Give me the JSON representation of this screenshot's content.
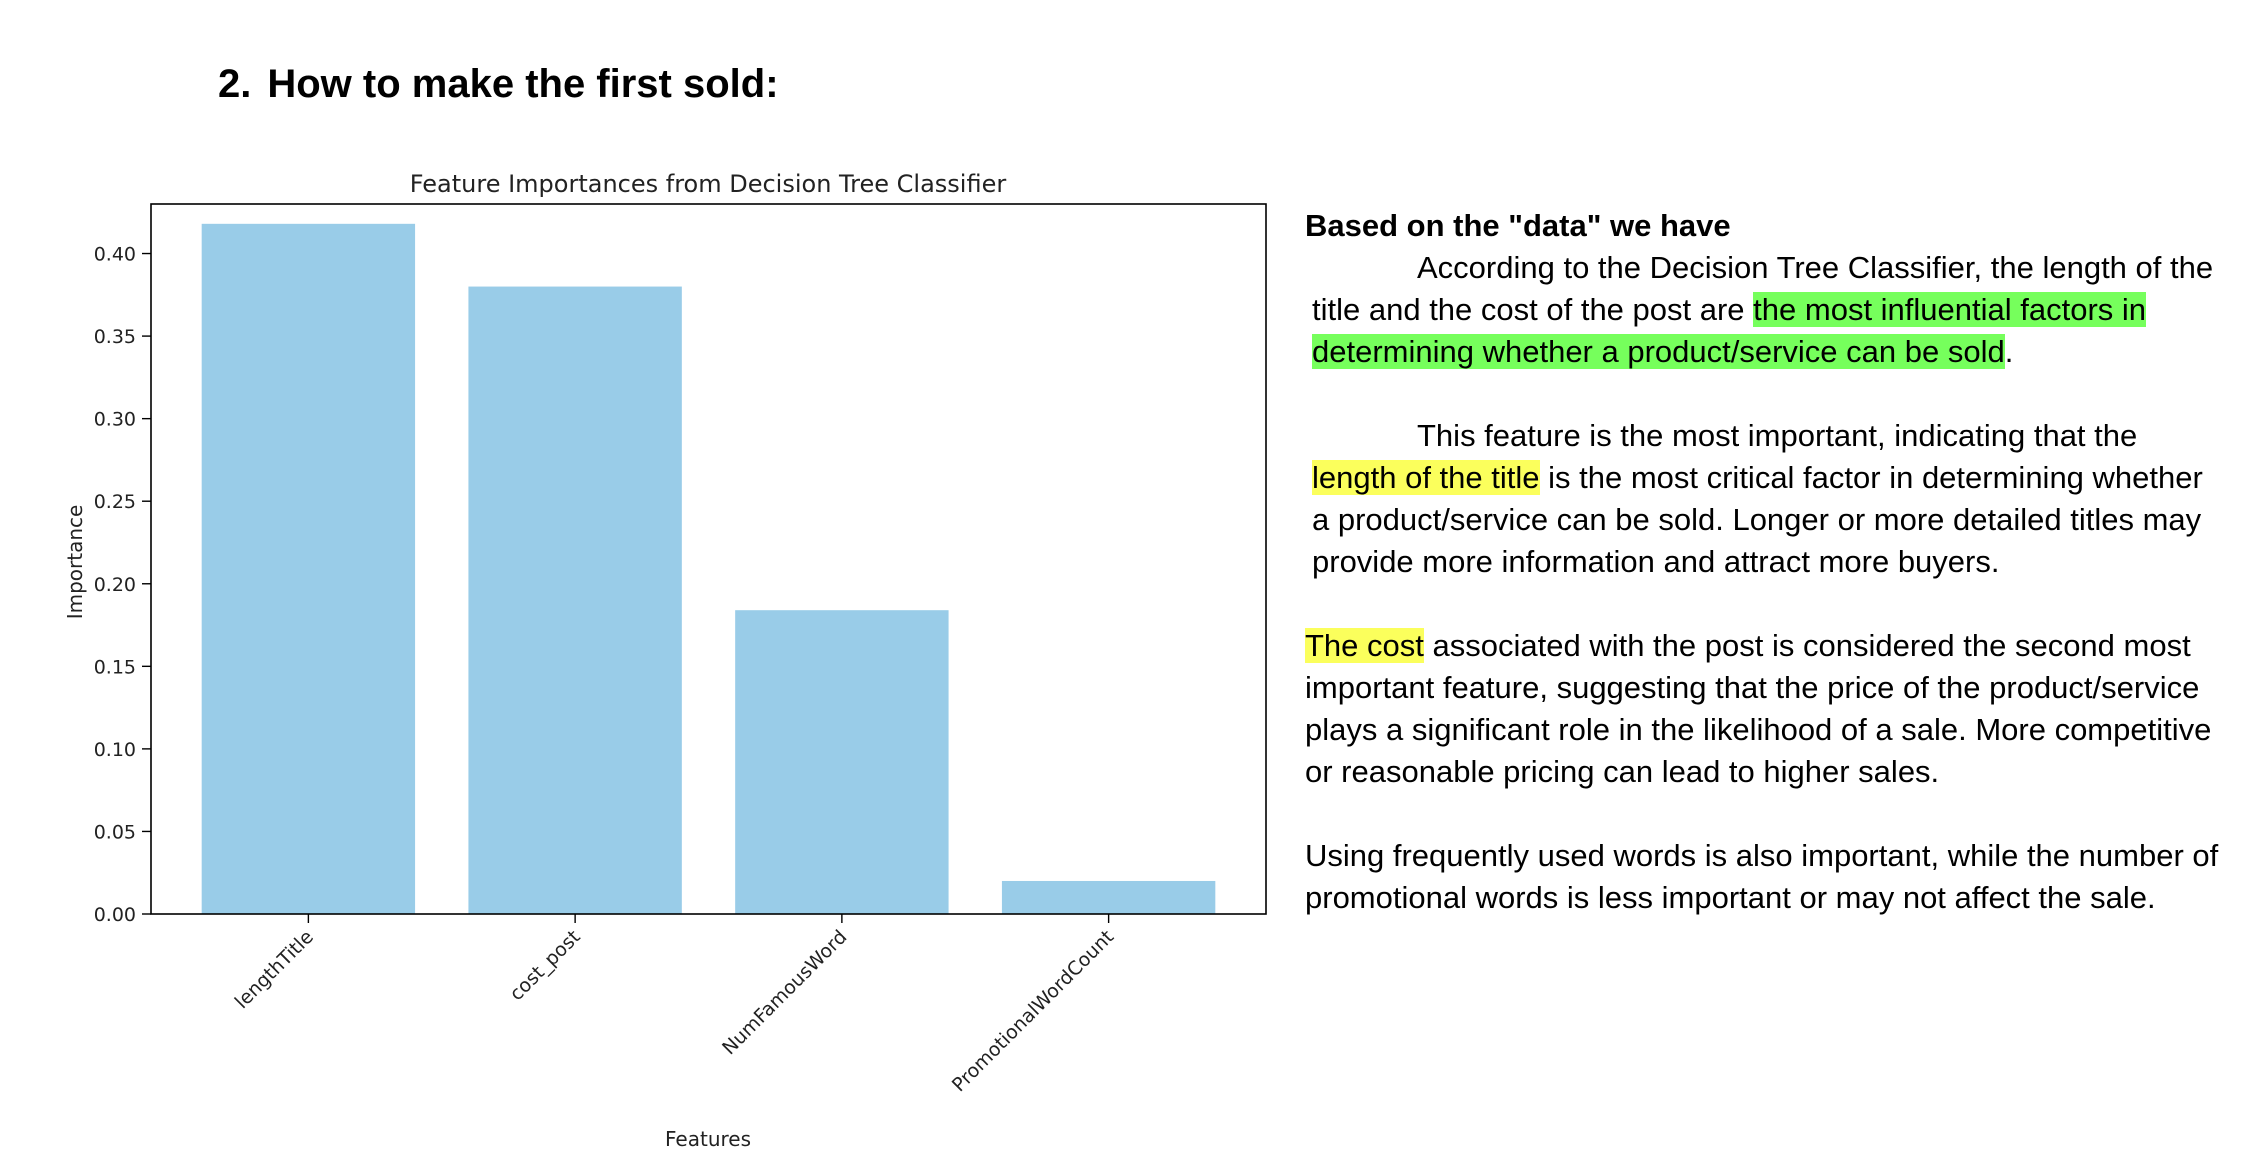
{
  "heading": {
    "number": "2.",
    "text": "How to make the first sold:"
  },
  "chart_data": {
    "type": "bar",
    "title": "Feature Importances from Decision Tree Classifier",
    "xlabel": "Features",
    "ylabel": "Importance",
    "categories": [
      "lengthTitle",
      "cost_post",
      "NumFamousWord",
      "PromotionalWordCount"
    ],
    "values": [
      0.418,
      0.38,
      0.184,
      0.02
    ],
    "ylim": [
      0,
      0.43
    ],
    "yticks": [
      "0.00",
      "0.05",
      "0.10",
      "0.15",
      "0.20",
      "0.25",
      "0.30",
      "0.35",
      "0.40"
    ],
    "bar_color": "#99cce8",
    "grid": false
  },
  "explanation": {
    "lead": "Based on the \"data\" we have",
    "para1": {
      "text_a": "According to the Decision Tree Classifier, the length of the title and the cost of the post are ",
      "highlight": "the most influential factors in determining whether a product/service can be sold",
      "text_b": "."
    },
    "para2": {
      "text_a": "This feature is the most important, indicating that the ",
      "highlight": "length of the title",
      "text_b": " is the most critical factor in determining whether a product/service can be sold. Longer or more detailed titles may provide more information and attract more buyers."
    },
    "para3": {
      "highlight": "The cost",
      "text_b": " associated with the post is considered the second most important feature, suggesting that the price of the product/service plays a significant role in the likelihood of a sale. More competitive or reasonable pricing can lead to higher sales."
    },
    "para4": {
      "text": "Using frequently used words is also important, while the number of promotional words is less important or may not affect the sale."
    },
    "colors": {
      "green_highlight": "#76ff5c",
      "yellow_highlight": "#fbff5c"
    }
  }
}
